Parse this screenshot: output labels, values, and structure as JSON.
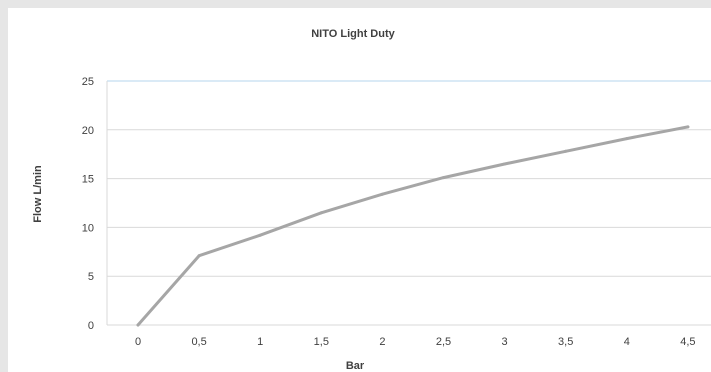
{
  "chart_data": {
    "type": "line",
    "title": "NITO Light Duty",
    "xlabel": "Bar",
    "ylabel": "Flow  L/min",
    "categories": [
      "0",
      "0,5",
      "1",
      "1,5",
      "2",
      "2,5",
      "3",
      "3,5",
      "4",
      "4,5"
    ],
    "series": [
      {
        "values": [
          0,
          7.1,
          9.2,
          11.5,
          13.4,
          15.1,
          16.5,
          17.8,
          19.1,
          20.3
        ]
      }
    ],
    "yticks": [
      "0",
      "5",
      "10",
      "15",
      "20",
      "25"
    ],
    "ylim": [
      0,
      25
    ],
    "grid": true,
    "legend": "none",
    "colors": {
      "line": "#a6a6a6",
      "grid": "#d9d9d9",
      "top_axis": "#b4d6ee",
      "text": "#404040"
    }
  }
}
